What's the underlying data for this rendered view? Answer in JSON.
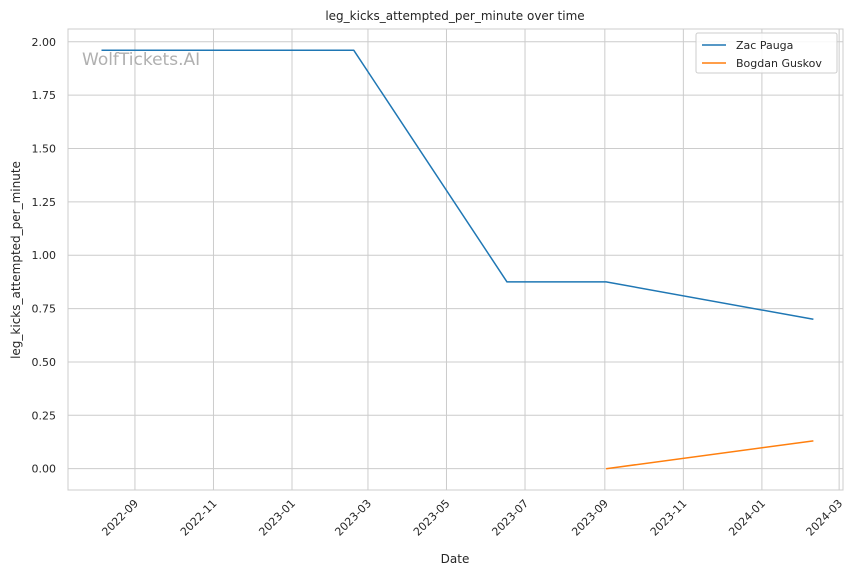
{
  "chart_data": {
    "type": "line",
    "title": "leg_kicks_attempted_per_minute over time",
    "xlabel": "Date",
    "ylabel": "leg_kicks_attempted_per_minute",
    "xlim": [
      "2022-07-11",
      "2024-03-04"
    ],
    "ylim": [
      -0.1,
      2.06
    ],
    "x_ticks": [
      "2022-09",
      "2022-11",
      "2023-01",
      "2023-03",
      "2023-05",
      "2023-07",
      "2023-09",
      "2023-11",
      "2024-01",
      "2024-03"
    ],
    "y_ticks": [
      "0.00",
      "0.25",
      "0.50",
      "0.75",
      "1.00",
      "1.25",
      "1.50",
      "1.75",
      "2.00"
    ],
    "grid": true,
    "legend_position": "top-right",
    "watermark": "WolfTickets.AI",
    "series": [
      {
        "name": "Zac Pauga",
        "color": "#1f77b4",
        "points": [
          {
            "x": "2022-08-06",
            "y": 1.96
          },
          {
            "x": "2023-02-18",
            "y": 1.96
          },
          {
            "x": "2023-06-17",
            "y": 0.875
          },
          {
            "x": "2023-09-02",
            "y": 0.875
          },
          {
            "x": "2024-02-10",
            "y": 0.7
          }
        ]
      },
      {
        "name": "Bogdan Guskov",
        "color": "#ff7f0e",
        "points": [
          {
            "x": "2023-09-02",
            "y": 0.0
          },
          {
            "x": "2024-02-10",
            "y": 0.13
          }
        ]
      }
    ]
  }
}
